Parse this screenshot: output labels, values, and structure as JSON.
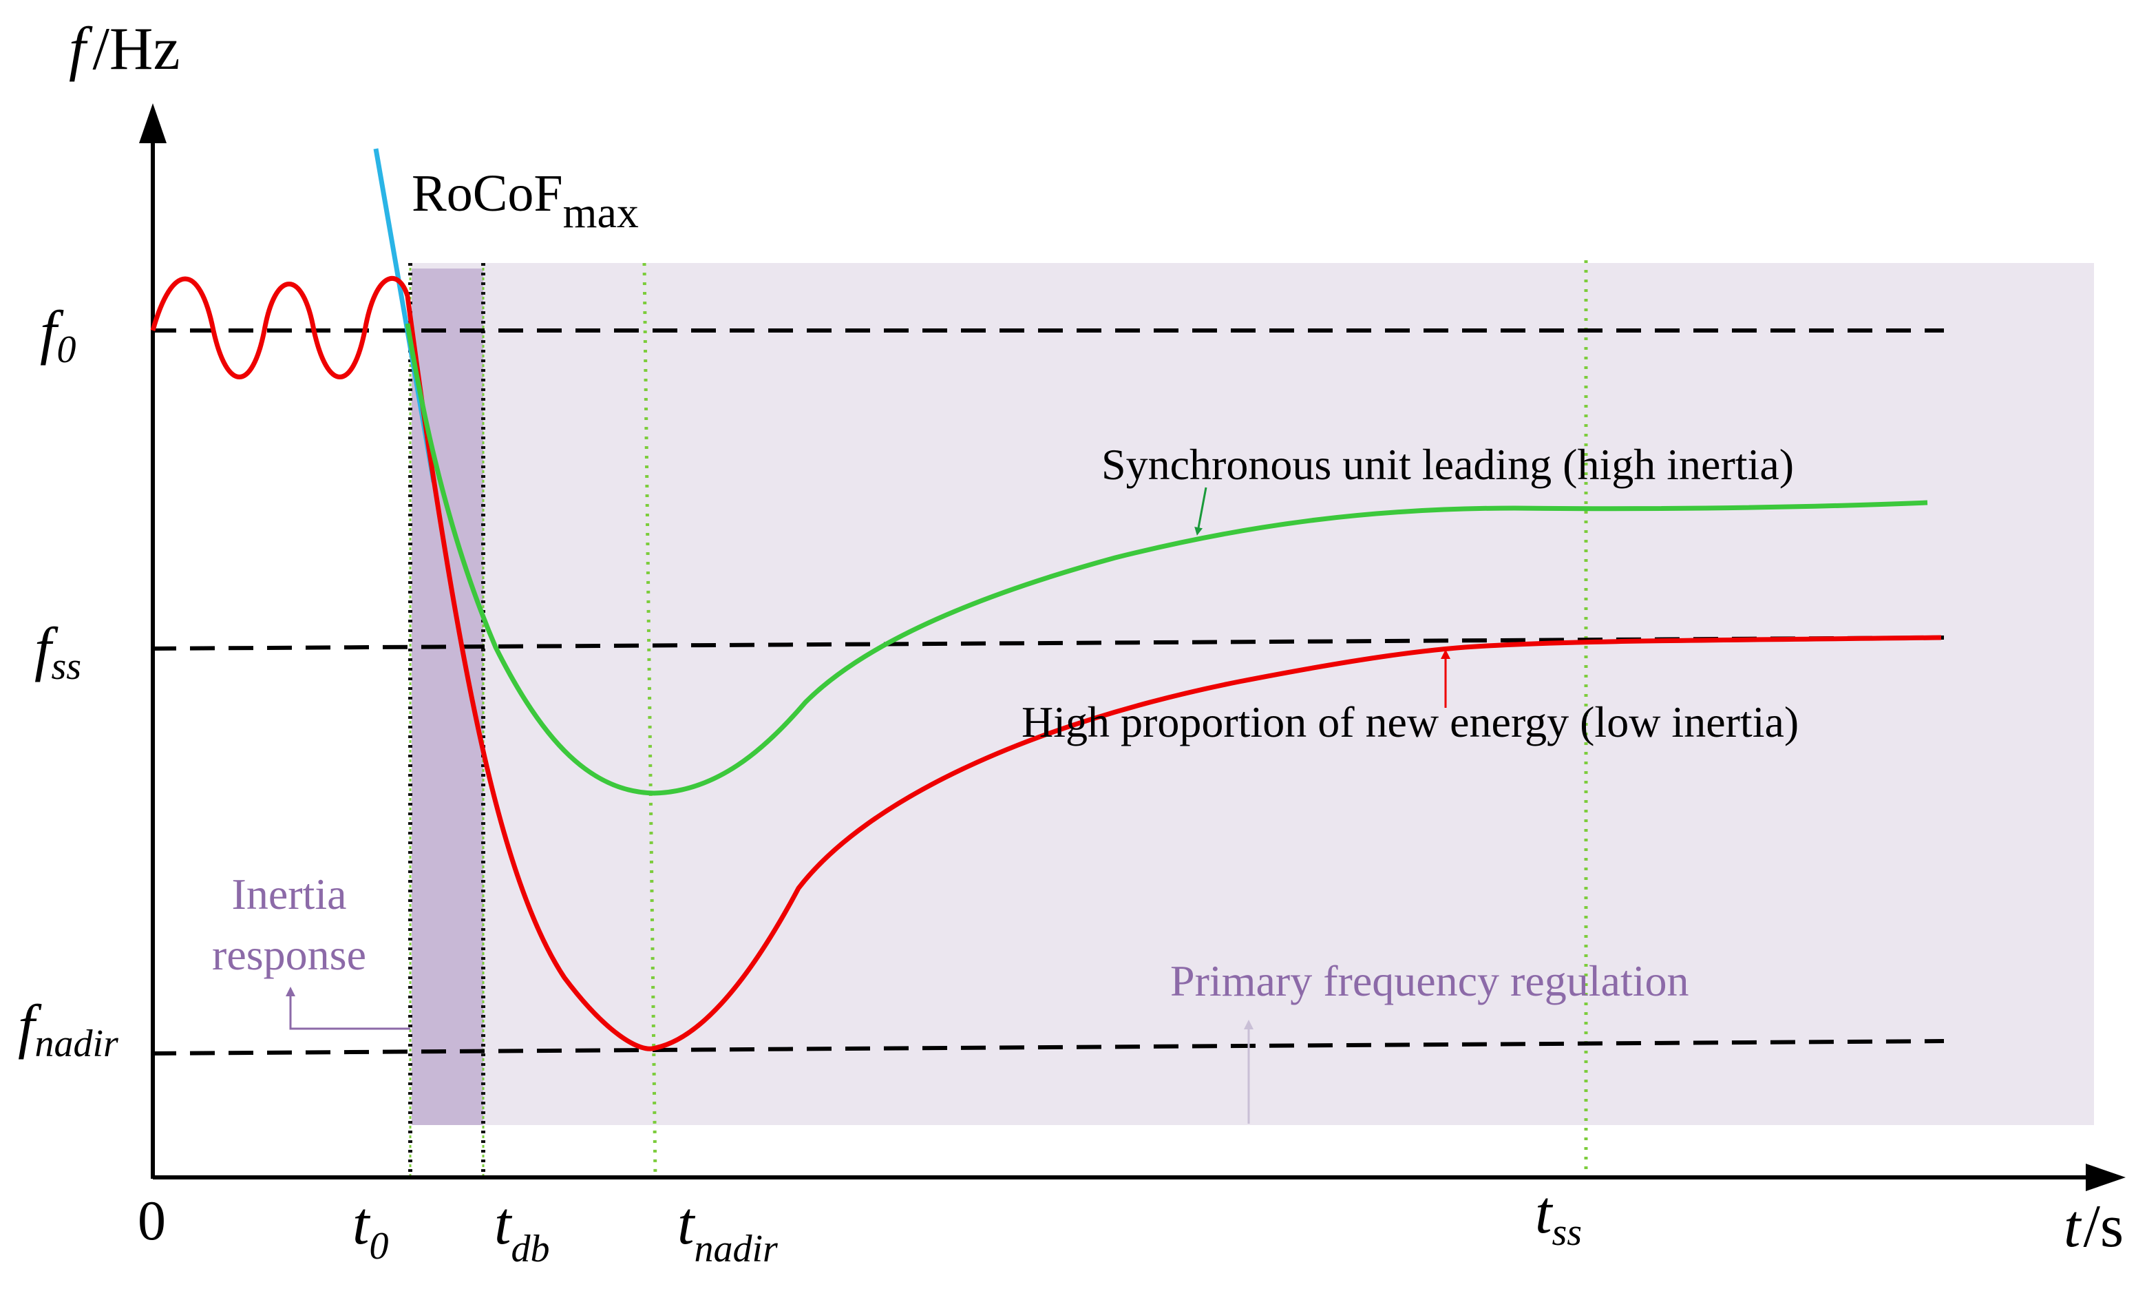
{
  "axes": {
    "y_label_var": "f",
    "y_label_unit": "/Hz",
    "x_label_var": "t",
    "x_label_unit": "/s",
    "origin": "0"
  },
  "y_levels": {
    "f0": {
      "base": "f",
      "sub": "0"
    },
    "fss": {
      "base": "f",
      "sub": "ss"
    },
    "fnadir": {
      "base": "f",
      "sub": "nadir"
    }
  },
  "x_marks": {
    "t0": {
      "base": "t",
      "sub": "0"
    },
    "tdb": {
      "base": "t",
      "sub": "db"
    },
    "tnadir": {
      "base": "t",
      "sub": "nadir"
    },
    "tss": {
      "base": "t",
      "sub": "ss"
    }
  },
  "annotations": {
    "rocof_main": "RoCoF",
    "rocof_sub": "max",
    "sync_unit": "Synchronous unit leading (high inertia)",
    "new_energy": "High proportion of new energy (low inertia)",
    "inertia_line1": "Inertia",
    "inertia_line2": "response",
    "primary": "Primary frequency regulation"
  },
  "colors": {
    "high_inertia": "#3cc83c",
    "low_inertia": "#ee0000",
    "rocof_tangent": "#2ab4e6",
    "region_primary": "#ebe6ef",
    "region_inertia": "#c8b8d6",
    "annotation_purple": "#8c6aa8",
    "axis": "#000000"
  }
}
